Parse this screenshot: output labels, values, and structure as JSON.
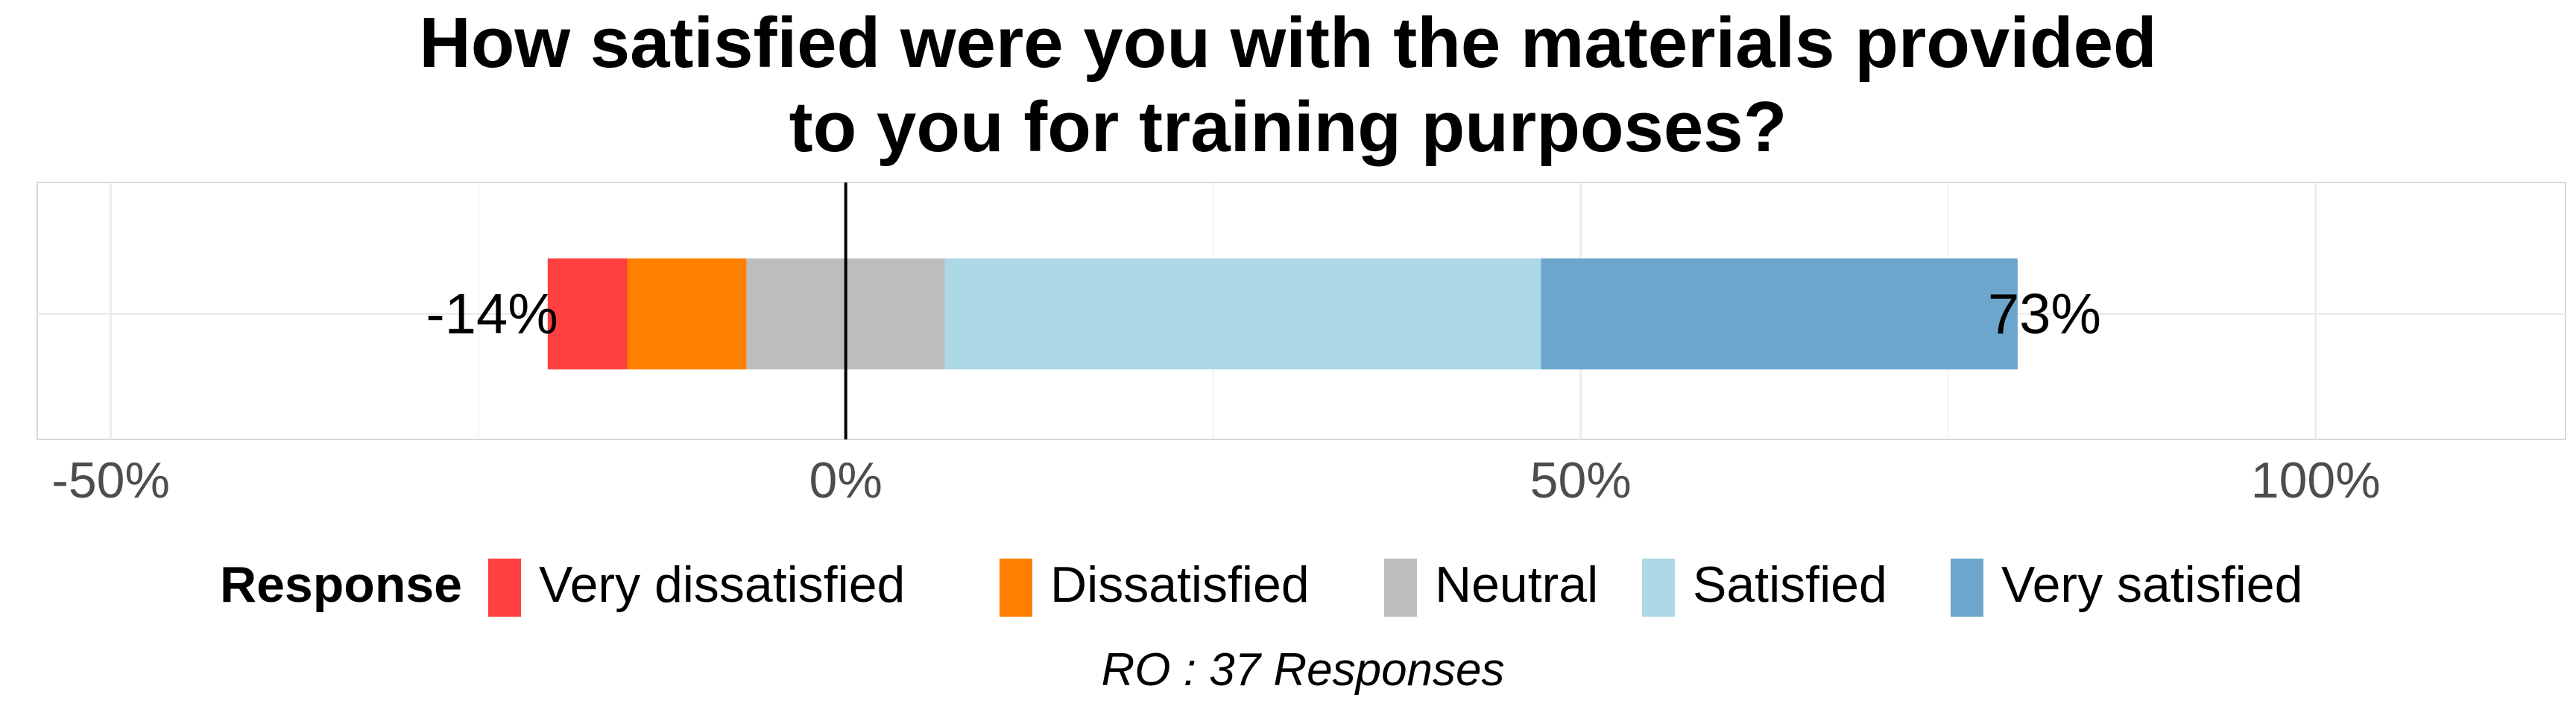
{
  "chart_data": {
    "type": "bar",
    "orientation": "horizontal",
    "stacked": true,
    "diverging": true,
    "title_lines": [
      "How satisfied were you with the materials provided",
      "to you for training purposes?"
    ],
    "caption": "RO : 37 Responses",
    "xlim": [
      -0.55,
      1.17
    ],
    "x_ticks": [
      -0.5,
      0,
      0.5,
      1
    ],
    "x_tick_labels": [
      "-50%",
      "0%",
      "50%",
      "100%"
    ],
    "grid": true,
    "legend": {
      "position": "bottom",
      "title": "Response"
    },
    "series": [
      {
        "name": "Very dissatisfied",
        "color": "#ff4040",
        "values": [
          -0.0541
        ]
      },
      {
        "name": "Dissatisfied",
        "color": "#ff7f00",
        "values": [
          -0.0811
        ]
      },
      {
        "name": "Neutral",
        "color": "#bdbdbd",
        "values": [
          0.1351
        ]
      },
      {
        "name": "Satisfied",
        "color": "#add8e6",
        "values": [
          0.4054
        ]
      },
      {
        "name": "Very satisfied",
        "color": "#6ca6cd",
        "values": [
          0.3243
        ]
      }
    ],
    "left_total_label": "-14%",
    "right_total_label": "73%"
  }
}
